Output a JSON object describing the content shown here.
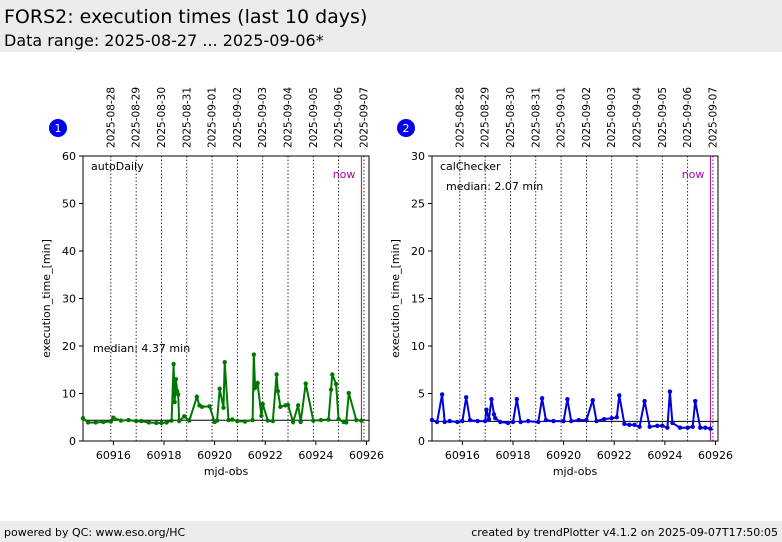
{
  "header": {
    "title": "FORS2: execution times (last 10 days)",
    "subtitle": "Data range: 2025-08-27 ... 2025-09-06*"
  },
  "footer": {
    "left": "powered by QC: www.eso.org/HC",
    "right": "created by trendPlotter v4.1.2 on 2025-09-07T17:50:05"
  },
  "colors": {
    "header_bg": "#ececec",
    "now_line": "#aa00aa",
    "median_line": "#000000"
  },
  "chart_data": [
    {
      "type": "line",
      "badge": "1",
      "label": "autoDaily",
      "median_text": "median: 4.37 min",
      "median": 4.37,
      "now_text": "now",
      "now_x": 60925.8,
      "color": "#007700",
      "xlabel": "mjd-obs",
      "ylabel": "execution_time_[min]",
      "xlim": [
        60914.8,
        60926.1
      ],
      "ylim": [
        0,
        60
      ],
      "xticks": [
        60916,
        60918,
        60920,
        60922,
        60924,
        60926
      ],
      "yticks": [
        0,
        10,
        20,
        30,
        40,
        50,
        60
      ],
      "date_ticks": [
        {
          "x": 60915.9,
          "label": "2025-08-28"
        },
        {
          "x": 60916.9,
          "label": "2025-08-29"
        },
        {
          "x": 60917.9,
          "label": "2025-08-30"
        },
        {
          "x": 60918.9,
          "label": "2025-08-31"
        },
        {
          "x": 60919.9,
          "label": "2025-09-01"
        },
        {
          "x": 60920.9,
          "label": "2025-09-02"
        },
        {
          "x": 60921.9,
          "label": "2025-09-03"
        },
        {
          "x": 60922.9,
          "label": "2025-09-04"
        },
        {
          "x": 60923.9,
          "label": "2025-09-05"
        },
        {
          "x": 60924.9,
          "label": "2025-09-06"
        },
        {
          "x": 60925.9,
          "label": "2025-09-07"
        }
      ],
      "series": [
        {
          "x": [
            60914.8,
            60915.0,
            60915.3,
            60915.6,
            60915.9,
            60916.0,
            60916.3,
            60916.6,
            60916.9,
            60917.1,
            60917.4,
            60917.7,
            60917.9,
            60918.1,
            60918.3,
            60918.38,
            60918.42,
            60918.47,
            60918.52,
            60918.56,
            60918.6,
            60918.8,
            60919.0,
            60919.3,
            60919.4,
            60919.5,
            60919.8,
            60920.0,
            60920.1,
            60920.2,
            60920.35,
            60920.4,
            60920.55,
            60920.7,
            60920.9,
            60921.2,
            60921.5,
            60921.55,
            60921.6,
            60921.7,
            60921.85,
            60921.9,
            60922.1,
            60922.3,
            60922.45,
            60922.5,
            60922.6,
            60922.8,
            60922.9,
            60923.1,
            60923.3,
            60923.4,
            60923.6,
            60923.9,
            60924.2,
            60924.5,
            60924.6,
            60924.65,
            60924.8,
            60924.9,
            60925.1,
            60925.2,
            60925.3,
            60925.6,
            60925.8
          ],
          "y": [
            4.8,
            3.9,
            3.9,
            4.0,
            4.1,
            4.9,
            4.3,
            4.4,
            4.2,
            4.2,
            3.9,
            3.8,
            3.8,
            3.9,
            4.3,
            16.2,
            8.2,
            13.0,
            10.5,
            9.8,
            4.2,
            5.2,
            4.3,
            9.3,
            7.5,
            7.2,
            7.3,
            4.0,
            4.3,
            11.0,
            7.0,
            16.6,
            4.4,
            4.5,
            4.2,
            4.1,
            4.4,
            18.2,
            11.2,
            12.2,
            5.3,
            7.8,
            4.3,
            4.2,
            14.0,
            10.5,
            7.2,
            7.5,
            7.6,
            4.0,
            7.5,
            4.0,
            12.1,
            4.3,
            4.4,
            4.5,
            10.8,
            14.0,
            12.0,
            4.6,
            4.0,
            3.9,
            10.1,
            4.4,
            4.3
          ]
        }
      ]
    },
    {
      "type": "line",
      "badge": "2",
      "label": "calChecker",
      "median_text": "median: 2.07 min",
      "median": 2.07,
      "now_text": "now",
      "now_x": 60925.8,
      "color": "#0000dd",
      "xlabel": "mjd-obs",
      "ylabel": "execution_time_[min]",
      "xlim": [
        60914.8,
        60926.1
      ],
      "ylim": [
        0,
        30
      ],
      "xticks": [
        60916,
        60918,
        60920,
        60922,
        60924,
        60926
      ],
      "yticks": [
        0,
        5,
        10,
        15,
        20,
        25,
        30
      ],
      "date_ticks": [
        {
          "x": 60915.9,
          "label": "2025-08-28"
        },
        {
          "x": 60916.9,
          "label": "2025-08-29"
        },
        {
          "x": 60917.9,
          "label": "2025-08-30"
        },
        {
          "x": 60918.9,
          "label": "2025-08-31"
        },
        {
          "x": 60919.9,
          "label": "2025-09-01"
        },
        {
          "x": 60920.9,
          "label": "2025-09-02"
        },
        {
          "x": 60921.9,
          "label": "2025-09-03"
        },
        {
          "x": 60922.9,
          "label": "2025-09-04"
        },
        {
          "x": 60923.9,
          "label": "2025-09-05"
        },
        {
          "x": 60924.9,
          "label": "2025-09-06"
        },
        {
          "x": 60925.9,
          "label": "2025-09-07"
        }
      ],
      "series": [
        {
          "x": [
            60914.8,
            60915.0,
            60915.2,
            60915.3,
            60915.5,
            60915.8,
            60916.0,
            60916.15,
            60916.3,
            60916.6,
            60916.9,
            60916.95,
            60917.05,
            60917.15,
            60917.25,
            60917.3,
            60917.5,
            60917.8,
            60918.0,
            60918.15,
            60918.3,
            60918.6,
            60919.0,
            60919.15,
            60919.3,
            60919.6,
            60920.0,
            60920.15,
            60920.3,
            60920.6,
            60920.9,
            60921.15,
            60921.3,
            60921.6,
            60921.9,
            60922.1,
            60922.2,
            60922.4,
            60922.6,
            60922.8,
            60923.0,
            60923.2,
            60923.4,
            60923.7,
            60923.9,
            60924.1,
            60924.2,
            60924.3,
            60924.6,
            60924.9,
            60925.1,
            60925.2,
            60925.4,
            60925.6,
            60925.8
          ],
          "y": [
            2.2,
            2.0,
            4.9,
            2.0,
            2.1,
            2.0,
            2.1,
            4.6,
            2.2,
            2.1,
            2.1,
            3.3,
            2.3,
            4.4,
            2.8,
            2.4,
            2.0,
            1.9,
            2.0,
            4.4,
            2.0,
            2.1,
            2.0,
            4.5,
            2.2,
            2.1,
            2.1,
            4.4,
            2.1,
            2.2,
            2.2,
            4.3,
            2.1,
            2.3,
            2.4,
            2.5,
            4.8,
            1.8,
            1.7,
            1.7,
            1.5,
            4.2,
            1.5,
            1.6,
            1.6,
            1.4,
            5.2,
            1.9,
            1.4,
            1.4,
            1.5,
            4.2,
            1.4,
            1.4,
            1.3
          ]
        }
      ]
    }
  ]
}
